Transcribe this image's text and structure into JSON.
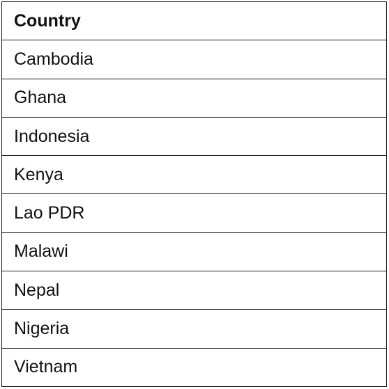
{
  "table": {
    "header": "Country",
    "rows": [
      "Cambodia",
      "Ghana",
      "Indonesia",
      "Kenya",
      "Lao PDR",
      "Malawi",
      "Nepal",
      "Nigeria",
      "Vietnam"
    ]
  }
}
